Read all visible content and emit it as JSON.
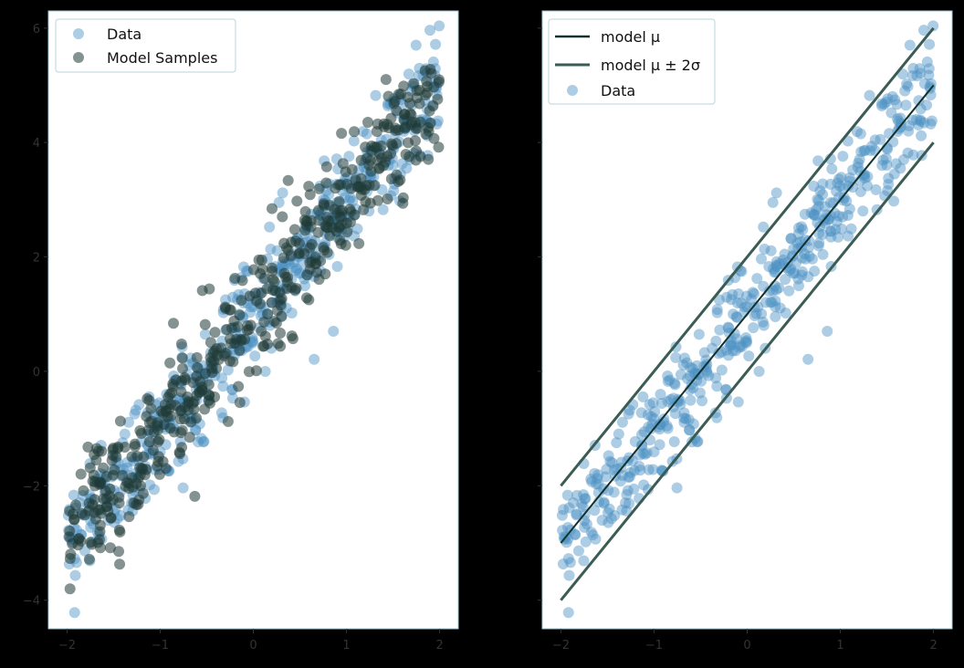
{
  "chart_data": [
    {
      "type": "scatter",
      "xlim": [
        -2.2,
        2.2
      ],
      "ylim": [
        -4.5,
        6.3
      ],
      "x_ticks": [
        -2,
        -1,
        0,
        1,
        2
      ],
      "y_ticks": [
        -4,
        -2,
        0,
        2,
        4,
        6
      ],
      "x_tick_labels": [
        "−2",
        "−1",
        "0",
        "1",
        "2"
      ],
      "y_tick_labels": [
        "−4",
        "−2",
        "0",
        "2",
        "4",
        "6"
      ],
      "legend_position": "top-left",
      "grid": false,
      "generating_model": {
        "slope": 2.0,
        "intercept": 1.0,
        "sigma": 0.5,
        "x_range": [
          -2,
          2
        ]
      },
      "series": [
        {
          "name": "Data",
          "kind": "scatter",
          "color": "#4a90c4",
          "alpha": 0.45,
          "n_points": 500
        },
        {
          "name": "Model Samples",
          "kind": "scatter",
          "color": "#1f3a36",
          "alpha": 0.55,
          "n_points": 500
        }
      ]
    },
    {
      "type": "line",
      "xlim": [
        -2.2,
        2.2
      ],
      "ylim": [
        -4.5,
        6.3
      ],
      "x_ticks": [
        -2,
        -1,
        0,
        1,
        2
      ],
      "y_ticks": [
        -4,
        -2,
        0,
        2,
        4,
        6
      ],
      "x_tick_labels": [
        "−2",
        "−1",
        "0",
        "1",
        "2"
      ],
      "legend_position": "top-left",
      "grid": false,
      "series": [
        {
          "name": "model μ",
          "kind": "line",
          "color": "#13312d",
          "x": [
            -2,
            2
          ],
          "y": [
            -3.0,
            5.0
          ]
        },
        {
          "name": "model μ ± 2σ",
          "kind": "line",
          "color": "#3a5c54",
          "x": [
            -2,
            2
          ],
          "y_upper": [
            -2.0,
            6.0
          ],
          "y_lower": [
            -4.0,
            4.0
          ]
        },
        {
          "name": "Data",
          "kind": "scatter",
          "color": "#4a90c4",
          "alpha": 0.45,
          "n_points": 500
        }
      ]
    }
  ]
}
